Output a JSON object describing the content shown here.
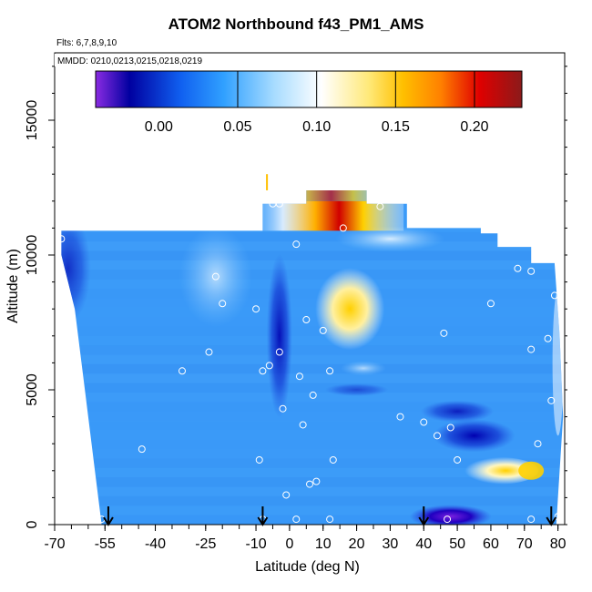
{
  "chart_data": {
    "type": "heatmap",
    "title": "ATOM2 Northbound f43_PM1_AMS",
    "subtitle": "Flts: 6,7,8,9,10",
    "annotation": "MMDD: 0210,0213,0215,0218,0219",
    "xlabel": "Latitude (deg N)",
    "ylabel": "Altitude (m)",
    "xlim": [
      -70,
      82
    ],
    "ylim": [
      0,
      17500
    ],
    "xticks": [
      "-70",
      "-55",
      "-40",
      "-25",
      "-10",
      "0",
      "10",
      "20",
      "30",
      "40",
      "50",
      "60",
      "70",
      "80"
    ],
    "xtick_values": [
      -70,
      -55,
      -40,
      -25,
      -10,
      0,
      10,
      20,
      30,
      40,
      50,
      60,
      70,
      80
    ],
    "yticks": [
      "0",
      "5000",
      "10000",
      "15000"
    ],
    "ytick_values": [
      0,
      5000,
      10000,
      15000
    ],
    "colorbar": {
      "range": [
        -0.04,
        0.23
      ],
      "ticks": [
        "0.00",
        "0.05",
        "0.10",
        "0.15",
        "0.20"
      ],
      "tick_values": [
        0.0,
        0.05,
        0.1,
        0.15,
        0.2
      ]
    },
    "profile_markers_lat": [
      -54,
      -8,
      40,
      78
    ],
    "colors": {
      "background_field": "#3a9af8",
      "low": "#1a1ae0",
      "mid": "#ffffff",
      "high": "#ffd700",
      "peak": "#cc0000"
    }
  }
}
